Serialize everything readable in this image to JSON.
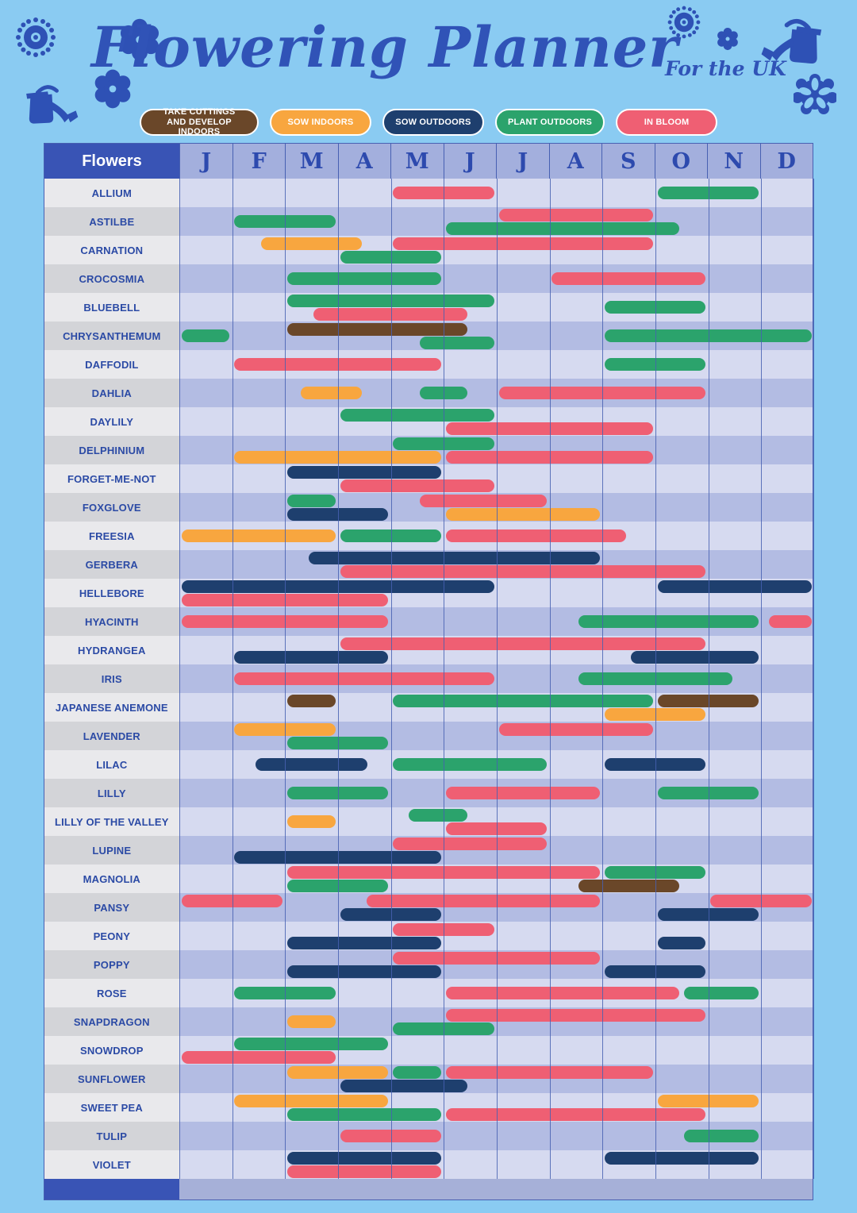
{
  "title": "Flowering Planner",
  "subtitle": "For the UK",
  "legend": [
    {
      "label": "TAKE CUTTINGS AND DEVELOP INDOORS",
      "series": "take-cuttings",
      "color": "#6a4729"
    },
    {
      "label": "SOW INDOORS",
      "series": "sow-indoors",
      "color": "#f8a63f"
    },
    {
      "label": "SOW OUTDOORS",
      "series": "sow-outdoors",
      "color": "#1e3f6e"
    },
    {
      "label": "PLANT OUTDOORS",
      "series": "plant-outdoors",
      "color": "#2ba36c"
    },
    {
      "label": "IN BLOOM",
      "series": "in-bloom",
      "color": "#ef5f73"
    }
  ],
  "table": {
    "header_label": "Flowers",
    "months": [
      "J",
      "F",
      "M",
      "A",
      "M",
      "J",
      "J",
      "A",
      "S",
      "O",
      "N",
      "D"
    ]
  },
  "colors": {
    "page_background": "#8acbf2",
    "title_blue": "#3053b7",
    "header_blue": "#3954b5",
    "month_header_bg": "#a3afdd",
    "month_letter": "#2d4aae",
    "grid_line": "#4760b2",
    "label_light": "#e9e9ec",
    "label_dark": "#d3d4d8",
    "band_light": "#d6daf0",
    "band_dark": "#b3bce3",
    "footer_strip": "#a6b0d8",
    "series": {
      "take-cuttings": "#6a4729",
      "sow-indoors": "#f8a63f",
      "sow-outdoors": "#1e3f6e",
      "plant-outdoors": "#2ba36c",
      "in-bloom": "#ef5f73"
    }
  },
  "chart_data": {
    "type": "gantt",
    "title": "Flowering Planner",
    "subtitle": "For the UK",
    "x_axis": {
      "unit": "month",
      "scale_note": "0=start of Jan, 12=end of Dec; fractional values are mid-month",
      "categories": [
        "Jan",
        "Feb",
        "Mar",
        "Apr",
        "May",
        "Jun",
        "Jul",
        "Aug",
        "Sep",
        "Oct",
        "Nov",
        "Dec"
      ]
    },
    "series_legend": [
      "take-cuttings",
      "sow-indoors",
      "sow-outdoors",
      "plant-outdoors",
      "in-bloom"
    ],
    "rows": [
      {
        "flower": "ALLIUM",
        "bars": [
          {
            "series": "in-bloom",
            "start": 4,
            "end": 6,
            "lane": "c"
          },
          {
            "series": "plant-outdoors",
            "start": 9,
            "end": 11,
            "lane": "c"
          }
        ]
      },
      {
        "flower": "ASTILBE",
        "bars": [
          {
            "series": "in-bloom",
            "start": 6,
            "end": 9,
            "lane": "t"
          },
          {
            "series": "plant-outdoors",
            "start": 1,
            "end": 3,
            "lane": "c"
          },
          {
            "series": "plant-outdoors",
            "start": 5,
            "end": 9.5,
            "lane": "b"
          }
        ]
      },
      {
        "flower": "CARNATION",
        "bars": [
          {
            "series": "sow-indoors",
            "start": 1.5,
            "end": 3.5,
            "lane": "t"
          },
          {
            "series": "in-bloom",
            "start": 4,
            "end": 9,
            "lane": "t"
          },
          {
            "series": "plant-outdoors",
            "start": 3,
            "end": 5,
            "lane": "b"
          }
        ]
      },
      {
        "flower": "CROCOSMIA",
        "bars": [
          {
            "series": "plant-outdoors",
            "start": 2,
            "end": 5,
            "lane": "c"
          },
          {
            "series": "in-bloom",
            "start": 7,
            "end": 10,
            "lane": "c"
          }
        ]
      },
      {
        "flower": "BLUEBELL",
        "bars": [
          {
            "series": "plant-outdoors",
            "start": 2,
            "end": 6,
            "lane": "t"
          },
          {
            "series": "in-bloom",
            "start": 2.5,
            "end": 5.5,
            "lane": "b"
          },
          {
            "series": "plant-outdoors",
            "start": 8,
            "end": 10,
            "lane": "c"
          }
        ]
      },
      {
        "flower": "CHRYSANTHEMUM",
        "bars": [
          {
            "series": "plant-outdoors",
            "start": 0,
            "end": 1,
            "lane": "c"
          },
          {
            "series": "take-cuttings",
            "start": 2,
            "end": 5.5,
            "lane": "t"
          },
          {
            "series": "plant-outdoors",
            "start": 4.5,
            "end": 6,
            "lane": "b"
          },
          {
            "series": "plant-outdoors",
            "start": 8,
            "end": 12,
            "lane": "c"
          }
        ]
      },
      {
        "flower": "DAFFODIL",
        "bars": [
          {
            "series": "in-bloom",
            "start": 1,
            "end": 5,
            "lane": "c"
          },
          {
            "series": "plant-outdoors",
            "start": 8,
            "end": 10,
            "lane": "c"
          }
        ]
      },
      {
        "flower": "DAHLIA",
        "bars": [
          {
            "series": "sow-indoors",
            "start": 2.25,
            "end": 3.5,
            "lane": "c"
          },
          {
            "series": "plant-outdoors",
            "start": 4.5,
            "end": 5.5,
            "lane": "c"
          },
          {
            "series": "in-bloom",
            "start": 6,
            "end": 10,
            "lane": "c"
          }
        ]
      },
      {
        "flower": "DAYLILY",
        "bars": [
          {
            "series": "plant-outdoors",
            "start": 3,
            "end": 6,
            "lane": "t"
          },
          {
            "series": "in-bloom",
            "start": 5,
            "end": 9,
            "lane": "b"
          }
        ]
      },
      {
        "flower": "DELPHINIUM",
        "bars": [
          {
            "series": "plant-outdoors",
            "start": 4,
            "end": 6,
            "lane": "t"
          },
          {
            "series": "sow-indoors",
            "start": 1,
            "end": 5,
            "lane": "b"
          },
          {
            "series": "in-bloom",
            "start": 5,
            "end": 9,
            "lane": "b"
          }
        ]
      },
      {
        "flower": "FORGET-ME-NOT",
        "bars": [
          {
            "series": "sow-outdoors",
            "start": 2,
            "end": 5,
            "lane": "t"
          },
          {
            "series": "in-bloom",
            "start": 3,
            "end": 6,
            "lane": "b"
          }
        ]
      },
      {
        "flower": "FOXGLOVE",
        "bars": [
          {
            "series": "plant-outdoors",
            "start": 2,
            "end": 3,
            "lane": "t"
          },
          {
            "series": "in-bloom",
            "start": 4.5,
            "end": 7,
            "lane": "t"
          },
          {
            "series": "sow-outdoors",
            "start": 2,
            "end": 4,
            "lane": "b"
          },
          {
            "series": "sow-indoors",
            "start": 5,
            "end": 8,
            "lane": "b"
          }
        ]
      },
      {
        "flower": "FREESIA",
        "bars": [
          {
            "series": "sow-indoors",
            "start": 0,
            "end": 3,
            "lane": "c"
          },
          {
            "series": "plant-outdoors",
            "start": 3,
            "end": 5,
            "lane": "c"
          },
          {
            "series": "in-bloom",
            "start": 5,
            "end": 8.5,
            "lane": "c"
          }
        ]
      },
      {
        "flower": "GERBERA",
        "bars": [
          {
            "series": "sow-outdoors",
            "start": 2.4,
            "end": 8,
            "lane": "t"
          },
          {
            "series": "in-bloom",
            "start": 3,
            "end": 10,
            "lane": "b"
          }
        ]
      },
      {
        "flower": "HELLEBORE",
        "bars": [
          {
            "series": "sow-outdoors",
            "start": 0,
            "end": 6,
            "lane": "t"
          },
          {
            "series": "sow-outdoors",
            "start": 9,
            "end": 12,
            "lane": "t"
          },
          {
            "series": "in-bloom",
            "start": 0,
            "end": 4,
            "lane": "b"
          }
        ]
      },
      {
        "flower": "HYACINTH",
        "bars": [
          {
            "series": "in-bloom",
            "start": 0,
            "end": 4,
            "lane": "c"
          },
          {
            "series": "plant-outdoors",
            "start": 7.5,
            "end": 11,
            "lane": "c"
          },
          {
            "series": "in-bloom",
            "start": 11.1,
            "end": 12,
            "lane": "c"
          }
        ]
      },
      {
        "flower": "HYDRANGEA",
        "bars": [
          {
            "series": "in-bloom",
            "start": 3,
            "end": 10,
            "lane": "t"
          },
          {
            "series": "sow-outdoors",
            "start": 1,
            "end": 4,
            "lane": "b"
          },
          {
            "series": "sow-outdoors",
            "start": 8.5,
            "end": 11,
            "lane": "b"
          }
        ]
      },
      {
        "flower": "IRIS",
        "bars": [
          {
            "series": "in-bloom",
            "start": 1,
            "end": 6,
            "lane": "c"
          },
          {
            "series": "plant-outdoors",
            "start": 7.5,
            "end": 10.5,
            "lane": "c"
          }
        ]
      },
      {
        "flower": "JAPANESE ANEMONE",
        "bars": [
          {
            "series": "take-cuttings",
            "start": 2,
            "end": 3,
            "lane": "t"
          },
          {
            "series": "plant-outdoors",
            "start": 4,
            "end": 9,
            "lane": "t"
          },
          {
            "series": "take-cuttings",
            "start": 9,
            "end": 11,
            "lane": "t"
          },
          {
            "series": "sow-indoors",
            "start": 8,
            "end": 10,
            "lane": "b"
          }
        ]
      },
      {
        "flower": "LAVENDER",
        "bars": [
          {
            "series": "sow-indoors",
            "start": 1,
            "end": 3,
            "lane": "t"
          },
          {
            "series": "in-bloom",
            "start": 6,
            "end": 9,
            "lane": "t"
          },
          {
            "series": "plant-outdoors",
            "start": 2,
            "end": 4,
            "lane": "b"
          }
        ]
      },
      {
        "flower": "LILAC",
        "bars": [
          {
            "series": "sow-outdoors",
            "start": 1.4,
            "end": 3.6,
            "lane": "c"
          },
          {
            "series": "plant-outdoors",
            "start": 4,
            "end": 7,
            "lane": "c"
          },
          {
            "series": "sow-outdoors",
            "start": 8,
            "end": 10,
            "lane": "c"
          }
        ]
      },
      {
        "flower": "LILLY",
        "bars": [
          {
            "series": "plant-outdoors",
            "start": 2,
            "end": 4,
            "lane": "c"
          },
          {
            "series": "in-bloom",
            "start": 5,
            "end": 8,
            "lane": "c"
          },
          {
            "series": "plant-outdoors",
            "start": 9,
            "end": 11,
            "lane": "c"
          }
        ]
      },
      {
        "flower": "LILLY OF THE VALLEY",
        "bars": [
          {
            "series": "sow-indoors",
            "start": 2,
            "end": 3,
            "lane": "c"
          },
          {
            "series": "plant-outdoors",
            "start": 4.3,
            "end": 5.5,
            "lane": "t"
          },
          {
            "series": "in-bloom",
            "start": 5,
            "end": 7,
            "lane": "b"
          }
        ]
      },
      {
        "flower": "LUPINE",
        "bars": [
          {
            "series": "in-bloom",
            "start": 4,
            "end": 7,
            "lane": "t"
          },
          {
            "series": "sow-outdoors",
            "start": 1,
            "end": 5,
            "lane": "b"
          }
        ]
      },
      {
        "flower": "MAGNOLIA",
        "bars": [
          {
            "series": "in-bloom",
            "start": 2,
            "end": 8,
            "lane": "t"
          },
          {
            "series": "plant-outdoors",
            "start": 8,
            "end": 10,
            "lane": "t"
          },
          {
            "series": "plant-outdoors",
            "start": 2,
            "end": 4,
            "lane": "b"
          },
          {
            "series": "take-cuttings",
            "start": 7.5,
            "end": 9.5,
            "lane": "b"
          }
        ]
      },
      {
        "flower": "PANSY",
        "bars": [
          {
            "series": "in-bloom",
            "start": 0,
            "end": 2,
            "lane": "t"
          },
          {
            "series": "in-bloom",
            "start": 3.5,
            "end": 8,
            "lane": "t"
          },
          {
            "series": "in-bloom",
            "start": 10,
            "end": 12,
            "lane": "t"
          },
          {
            "series": "sow-outdoors",
            "start": 3,
            "end": 5,
            "lane": "b"
          },
          {
            "series": "sow-outdoors",
            "start": 9,
            "end": 11,
            "lane": "b"
          }
        ]
      },
      {
        "flower": "PEONY",
        "bars": [
          {
            "series": "in-bloom",
            "start": 4,
            "end": 6,
            "lane": "t"
          },
          {
            "series": "sow-outdoors",
            "start": 2,
            "end": 5,
            "lane": "b"
          },
          {
            "series": "sow-outdoors",
            "start": 9,
            "end": 10,
            "lane": "b"
          }
        ]
      },
      {
        "flower": "POPPY",
        "bars": [
          {
            "series": "in-bloom",
            "start": 4,
            "end": 8,
            "lane": "t"
          },
          {
            "series": "sow-outdoors",
            "start": 2,
            "end": 5,
            "lane": "b"
          },
          {
            "series": "sow-outdoors",
            "start": 8,
            "end": 10,
            "lane": "b"
          }
        ]
      },
      {
        "flower": "ROSE",
        "bars": [
          {
            "series": "plant-outdoors",
            "start": 1,
            "end": 3,
            "lane": "c"
          },
          {
            "series": "in-bloom",
            "start": 5,
            "end": 9.5,
            "lane": "c"
          },
          {
            "series": "plant-outdoors",
            "start": 9.5,
            "end": 11,
            "lane": "c"
          }
        ]
      },
      {
        "flower": "SNAPDRAGON",
        "bars": [
          {
            "series": "in-bloom",
            "start": 5,
            "end": 10,
            "lane": "t"
          },
          {
            "series": "sow-indoors",
            "start": 2,
            "end": 3,
            "lane": "c"
          },
          {
            "series": "plant-outdoors",
            "start": 4,
            "end": 6,
            "lane": "b"
          }
        ]
      },
      {
        "flower": "SNOWDROP",
        "bars": [
          {
            "series": "plant-outdoors",
            "start": 1,
            "end": 4,
            "lane": "t"
          },
          {
            "series": "in-bloom",
            "start": 0,
            "end": 3,
            "lane": "b"
          }
        ]
      },
      {
        "flower": "SUNFLOWER",
        "bars": [
          {
            "series": "sow-indoors",
            "start": 2,
            "end": 4,
            "lane": "t"
          },
          {
            "series": "plant-outdoors",
            "start": 4,
            "end": 5,
            "lane": "t"
          },
          {
            "series": "in-bloom",
            "start": 5,
            "end": 9,
            "lane": "t"
          },
          {
            "series": "sow-outdoors",
            "start": 3,
            "end": 5.5,
            "lane": "b"
          }
        ]
      },
      {
        "flower": "SWEET PEA",
        "bars": [
          {
            "series": "sow-indoors",
            "start": 1,
            "end": 4,
            "lane": "t"
          },
          {
            "series": "sow-indoors",
            "start": 9,
            "end": 11,
            "lane": "t"
          },
          {
            "series": "plant-outdoors",
            "start": 2,
            "end": 5,
            "lane": "b"
          },
          {
            "series": "in-bloom",
            "start": 5,
            "end": 10,
            "lane": "b"
          }
        ]
      },
      {
        "flower": "TULIP",
        "bars": [
          {
            "series": "in-bloom",
            "start": 3,
            "end": 5,
            "lane": "c"
          },
          {
            "series": "plant-outdoors",
            "start": 9.5,
            "end": 11,
            "lane": "c"
          }
        ]
      },
      {
        "flower": "VIOLET",
        "bars": [
          {
            "series": "sow-outdoors",
            "start": 2,
            "end": 5,
            "lane": "t"
          },
          {
            "series": "sow-outdoors",
            "start": 8,
            "end": 11,
            "lane": "t"
          },
          {
            "series": "in-bloom",
            "start": 2,
            "end": 5,
            "lane": "b"
          }
        ]
      }
    ]
  }
}
